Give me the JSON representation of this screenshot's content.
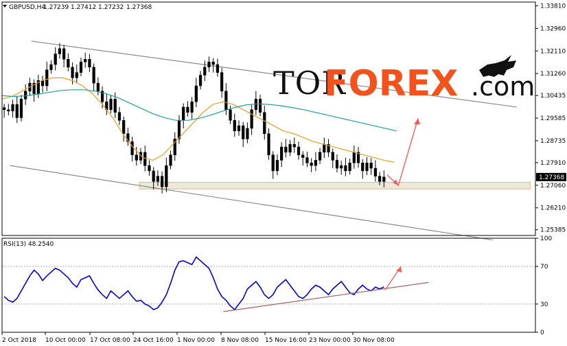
{
  "chart_data": [
    {
      "type": "line",
      "subtype": "candlestick",
      "header": {
        "symbol": "GBPUSD,H4",
        "open": "1.27239",
        "high": "1.27412",
        "low": "1.27232",
        "close": "1.27368"
      },
      "ylim": [
        1.2517,
        1.3395
      ],
      "y_ticks": [
        "1.33810",
        "1.32960",
        "1.32110",
        "1.31260",
        "1.30435",
        "1.29585",
        "1.28735",
        "1.27910",
        "1.27060",
        "1.26210",
        "1.25385"
      ],
      "current_price_label": "1.27368",
      "x_tick_labels": [
        "2 Oct 2018",
        "10 Oct 00:00",
        "17 Oct 08:00",
        "24 Oct 16:00",
        "1 Nov 00:00",
        "8 Nov 08:00",
        "15 Nov 16:00",
        "23 Nov 00:00",
        "30 Nov 08:00"
      ],
      "close_series": [
        1.299,
        1.2985,
        1.301,
        1.296,
        1.303,
        1.306,
        1.309,
        1.305,
        1.31,
        1.308,
        1.314,
        1.316,
        1.32,
        1.322,
        1.318,
        1.315,
        1.311,
        1.313,
        1.317,
        1.318,
        1.315,
        1.309,
        1.306,
        1.302,
        1.299,
        1.303,
        1.298,
        1.295,
        1.29,
        1.287,
        1.282,
        1.28,
        1.283,
        1.278,
        1.276,
        1.272,
        1.274,
        1.27,
        1.278,
        1.282,
        1.288,
        1.295,
        1.3,
        1.298,
        1.302,
        1.308,
        1.312,
        1.315,
        1.317,
        1.316,
        1.313,
        1.306,
        1.299,
        1.295,
        1.291,
        1.293,
        1.288,
        1.292,
        1.299,
        1.303,
        1.298,
        1.29,
        1.282,
        1.276,
        1.28,
        1.285,
        1.283,
        1.286,
        1.285,
        1.282,
        1.281,
        1.279,
        1.278,
        1.28,
        1.283,
        1.286,
        1.283,
        1.28,
        1.277,
        1.278,
        1.276,
        1.279,
        1.283,
        1.279,
        1.276,
        1.279,
        1.277,
        1.274,
        1.272,
        1.2737
      ],
      "overlays": [
        {
          "values": [
            1.303,
            1.304,
            1.306,
            1.308,
            1.31,
            1.311,
            1.311,
            1.31,
            1.308,
            1.305,
            1.301,
            1.296,
            1.29,
            1.285,
            1.281,
            1.28,
            1.282,
            1.286,
            1.29,
            1.294,
            1.298,
            1.301,
            1.302,
            1.301,
            1.299,
            1.297,
            1.295,
            1.293,
            1.291,
            1.29,
            1.2885,
            1.287,
            1.286,
            1.285,
            1.284,
            1.283,
            1.282,
            1.281,
            1.28,
            1.2793
          ],
          "color": "#e0a020"
        },
        {
          "values": [
            1.3043,
            1.304,
            1.3042,
            1.3048,
            1.3055,
            1.3062,
            1.3065,
            1.3065,
            1.306,
            1.305,
            1.3035,
            1.3015,
            1.2995,
            1.2975,
            1.296,
            1.295,
            1.295,
            1.2958,
            1.297,
            1.2985,
            1.2998,
            1.3008,
            1.3012,
            1.301,
            1.3005,
            1.2998,
            1.299,
            1.298,
            1.297,
            1.296,
            1.295,
            1.294,
            1.293,
            1.292,
            1.291
          ],
          "color": "#1f9e9a"
        }
      ],
      "support_zone": [
        1.2692,
        1.2717
      ],
      "channel_lines": [
        {
          "from": [
            0.055,
            1.3248
          ],
          "to": [
            0.965,
            1.3
          ]
        },
        {
          "from": [
            0.015,
            1.278
          ],
          "to": [
            0.92,
            1.25
          ]
        }
      ],
      "forecast_arrow": {
        "path": [
          [
            0.965,
            1.2745
          ],
          [
            0.982,
            1.2705
          ],
          [
            1.03,
            1.2958
          ]
        ],
        "color": "#f0605a"
      },
      "grid": false
    },
    {
      "type": "line",
      "title": "RSI(13) 48.2540",
      "ylim": [
        0,
        100
      ],
      "y_ticks": [
        "100",
        "70",
        "30",
        "0"
      ],
      "levels": [
        70,
        30
      ],
      "values": [
        38,
        34,
        32,
        36,
        44,
        52,
        60,
        66,
        62,
        55,
        60,
        64,
        68,
        66,
        62,
        58,
        52,
        48,
        56,
        58,
        60,
        52,
        45,
        40,
        36,
        44,
        40,
        36,
        40,
        44,
        38,
        33,
        34,
        30,
        28,
        24,
        26,
        32,
        40,
        52,
        66,
        75,
        76,
        74,
        72,
        80,
        76,
        72,
        68,
        58,
        46,
        38,
        34,
        28,
        24,
        30,
        36,
        46,
        50,
        54,
        48,
        40,
        36,
        40,
        48,
        52,
        56,
        50,
        44,
        38,
        36,
        40,
        46,
        50,
        48,
        44,
        40,
        46,
        50,
        54,
        48,
        42,
        40,
        46,
        50,
        46,
        44,
        48,
        46,
        48.25
      ],
      "trendline": {
        "from": [
          0.415,
          22
        ],
        "to": [
          0.8,
          53
        ]
      },
      "forecast_arrow": {
        "path": [
          [
            0.71,
            45
          ],
          [
            0.73,
            70
          ]
        ],
        "color": "#f0605a"
      }
    }
  ],
  "watermark": {
    "part1": "TOR",
    "part2": "FOREX",
    "part3": ".com"
  }
}
